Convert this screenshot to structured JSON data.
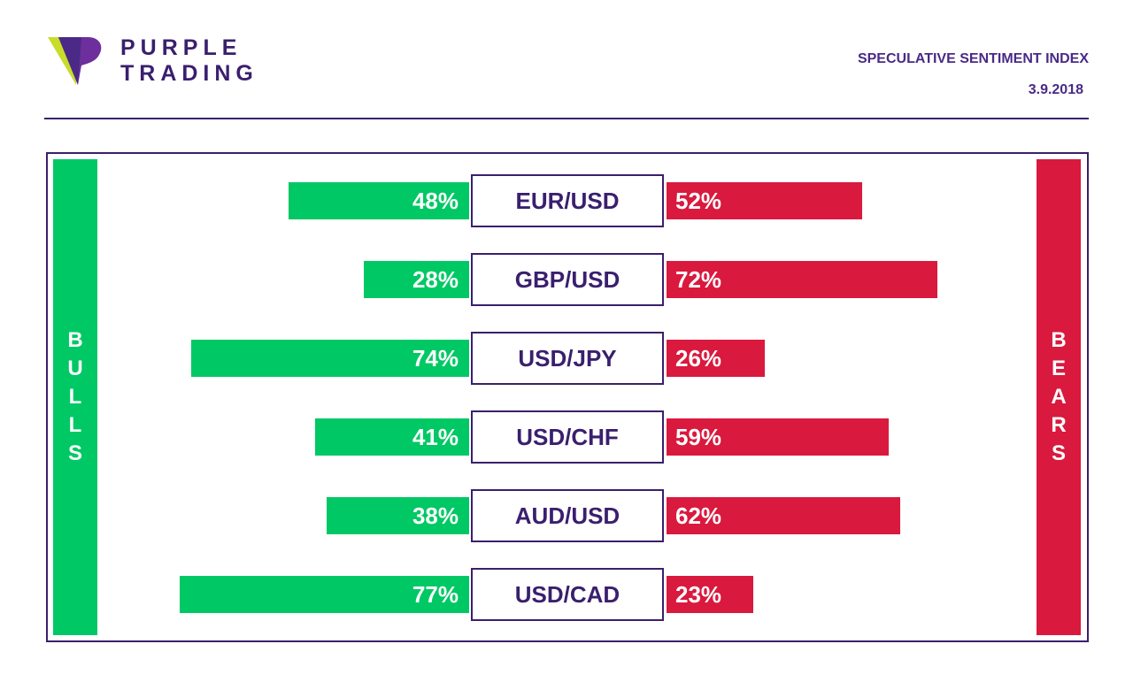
{
  "header": {
    "brand_line1": "PURPLE",
    "brand_line2": "TRADING",
    "title": "SPECULATIVE SENTIMENT INDEX",
    "date": "3.9.2018"
  },
  "labels": {
    "bulls": "BULLS",
    "bears": "BEARS"
  },
  "colors": {
    "bulls": "#00c864",
    "bears": "#d9193e",
    "brand": "#3a1f6e"
  },
  "chart_data": {
    "type": "bar",
    "title": "SPECULATIVE SENTIMENT INDEX",
    "categories": [
      "EUR/USD",
      "GBP/USD",
      "USD/JPY",
      "USD/CHF",
      "AUD/USD",
      "USD/CAD"
    ],
    "series": [
      {
        "name": "BULLS",
        "values": [
          48,
          28,
          74,
          41,
          38,
          77
        ],
        "labels": [
          "48%",
          "28%",
          "74%",
          "41%",
          "38%",
          "77%"
        ]
      },
      {
        "name": "BEARS",
        "values": [
          52,
          72,
          26,
          59,
          62,
          23
        ],
        "labels": [
          "52%",
          "72%",
          "26%",
          "59%",
          "62%",
          "23%"
        ]
      }
    ],
    "ylim": [
      0,
      100
    ]
  }
}
